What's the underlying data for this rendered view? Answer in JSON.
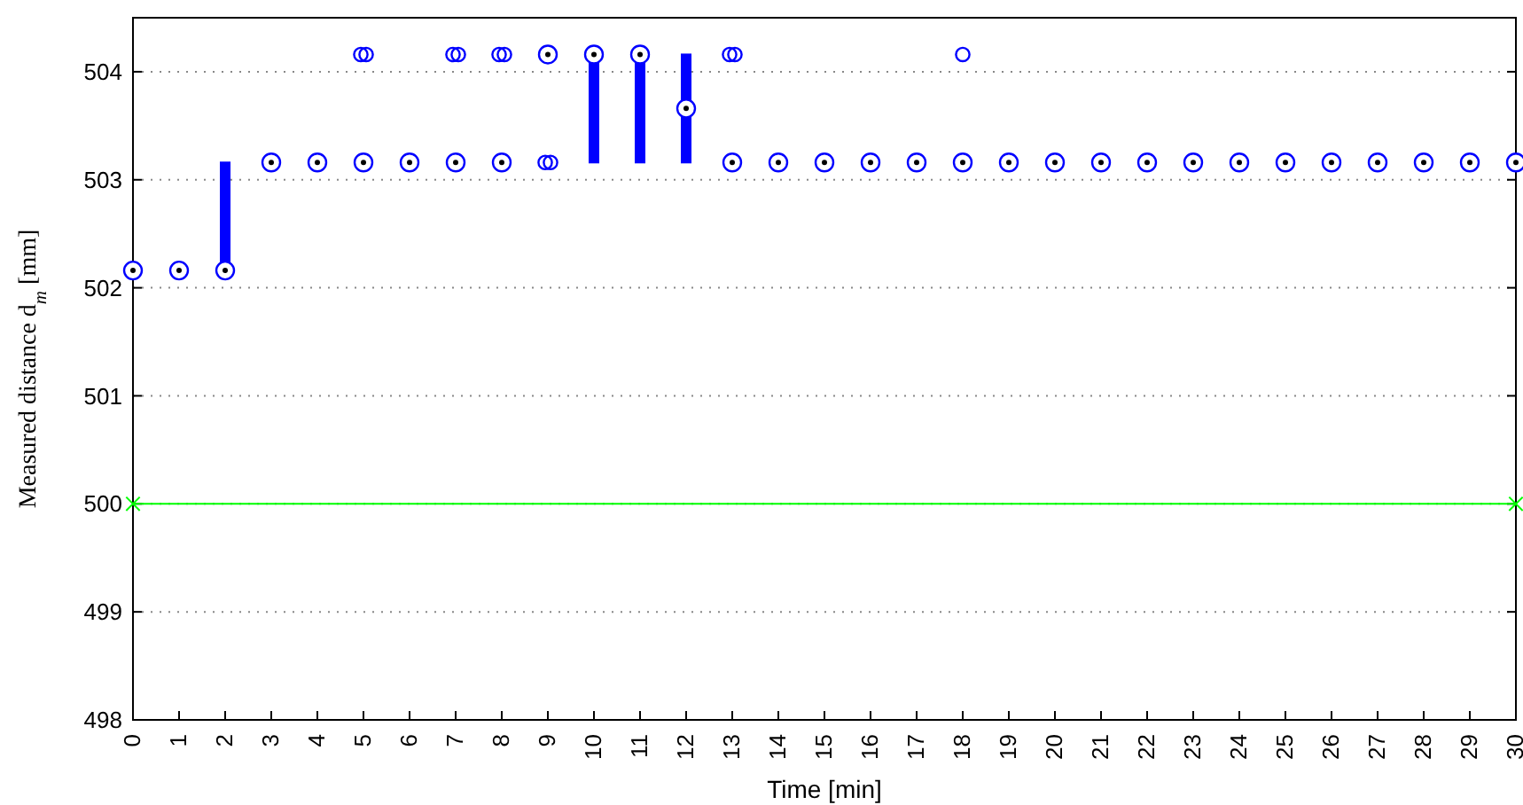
{
  "chart_data": {
    "type": "box",
    "xlabel": "Time [min]",
    "ylabel": "Measured distance d$_{m}$ [mm]",
    "categories": [
      "0",
      "1",
      "2",
      "3",
      "4",
      "5",
      "6",
      "7",
      "8",
      "9",
      "10",
      "11",
      "12",
      "13",
      "14",
      "15",
      "16",
      "17",
      "18",
      "19",
      "20",
      "21",
      "22",
      "23",
      "24",
      "25",
      "26",
      "27",
      "28",
      "29",
      "30"
    ],
    "series": [
      {
        "color": "#0000ff",
        "boxes": [
          {
            "low": 502.16,
            "q1": 502.16,
            "median": 502.16,
            "q3": 502.16,
            "high": 502.16
          },
          {
            "low": 502.16,
            "q1": 502.16,
            "median": 502.16,
            "q3": 502.16,
            "high": 502.16
          },
          {
            "low": 502.16,
            "q1": 502.16,
            "median": 502.16,
            "q3": 503.16,
            "high": 503.16
          },
          {
            "low": 503.16,
            "q1": 503.16,
            "median": 503.16,
            "q3": 503.16,
            "high": 503.16
          },
          {
            "low": 503.16,
            "q1": 503.16,
            "median": 503.16,
            "q3": 503.16,
            "high": 503.16
          },
          {
            "low": 503.16,
            "q1": 503.16,
            "median": 503.16,
            "q3": 503.16,
            "high": 503.16,
            "outliers": [
              504.16,
              504.16
            ]
          },
          {
            "low": 503.16,
            "q1": 503.16,
            "median": 503.16,
            "q3": 503.16,
            "high": 503.16
          },
          {
            "low": 503.16,
            "q1": 503.16,
            "median": 503.16,
            "q3": 503.16,
            "high": 503.16,
            "outliers": [
              504.16,
              504.16
            ]
          },
          {
            "low": 503.16,
            "q1": 503.16,
            "median": 503.16,
            "q3": 503.16,
            "high": 503.16,
            "outliers": [
              504.16,
              504.16
            ]
          },
          {
            "low": 504.16,
            "q1": 504.16,
            "median": 504.16,
            "q3": 504.16,
            "high": 504.16,
            "outliers": [
              503.16,
              503.16
            ]
          },
          {
            "low": 503.16,
            "q1": 503.16,
            "median": 504.16,
            "q3": 504.16,
            "high": 504.16
          },
          {
            "low": 503.16,
            "q1": 503.16,
            "median": 504.16,
            "q3": 504.16,
            "high": 504.16
          },
          {
            "low": 503.16,
            "q1": 503.16,
            "median": 503.66,
            "q3": 504.16,
            "high": 504.16
          },
          {
            "low": 503.16,
            "q1": 503.16,
            "median": 503.16,
            "q3": 503.16,
            "high": 503.16,
            "outliers": [
              504.16,
              504.16
            ]
          },
          {
            "low": 503.16,
            "q1": 503.16,
            "median": 503.16,
            "q3": 503.16,
            "high": 503.16
          },
          {
            "low": 503.16,
            "q1": 503.16,
            "median": 503.16,
            "q3": 503.16,
            "high": 503.16
          },
          {
            "low": 503.16,
            "q1": 503.16,
            "median": 503.16,
            "q3": 503.16,
            "high": 503.16
          },
          {
            "low": 503.16,
            "q1": 503.16,
            "median": 503.16,
            "q3": 503.16,
            "high": 503.16
          },
          {
            "low": 503.16,
            "q1": 503.16,
            "median": 503.16,
            "q3": 503.16,
            "high": 503.16,
            "outliers": [
              504.16
            ]
          },
          {
            "low": 503.16,
            "q1": 503.16,
            "median": 503.16,
            "q3": 503.16,
            "high": 503.16
          },
          {
            "low": 503.16,
            "q1": 503.16,
            "median": 503.16,
            "q3": 503.16,
            "high": 503.16
          },
          {
            "low": 503.16,
            "q1": 503.16,
            "median": 503.16,
            "q3": 503.16,
            "high": 503.16
          },
          {
            "low": 503.16,
            "q1": 503.16,
            "median": 503.16,
            "q3": 503.16,
            "high": 503.16
          },
          {
            "low": 503.16,
            "q1": 503.16,
            "median": 503.16,
            "q3": 503.16,
            "high": 503.16
          },
          {
            "low": 503.16,
            "q1": 503.16,
            "median": 503.16,
            "q3": 503.16,
            "high": 503.16
          },
          {
            "low": 503.16,
            "q1": 503.16,
            "median": 503.16,
            "q3": 503.16,
            "high": 503.16
          },
          {
            "low": 503.16,
            "q1": 503.16,
            "median": 503.16,
            "q3": 503.16,
            "high": 503.16
          },
          {
            "low": 503.16,
            "q1": 503.16,
            "median": 503.16,
            "q3": 503.16,
            "high": 503.16
          },
          {
            "low": 503.16,
            "q1": 503.16,
            "median": 503.16,
            "q3": 503.16,
            "high": 503.16
          },
          {
            "low": 503.16,
            "q1": 503.16,
            "median": 503.16,
            "q3": 503.16,
            "high": 503.16
          },
          {
            "low": 503.16,
            "q1": 503.16,
            "median": 503.16,
            "q3": 503.16,
            "high": 503.16
          }
        ]
      },
      {
        "type": "line",
        "color": "#00ff00",
        "x": [
          "0",
          "30"
        ],
        "values": [
          500,
          500
        ],
        "marker": "cross"
      }
    ],
    "ylim": [
      498,
      504.5
    ],
    "yticks": [
      498,
      499,
      500,
      501,
      502,
      503,
      504
    ],
    "grid": "y",
    "line_style": "solid"
  }
}
